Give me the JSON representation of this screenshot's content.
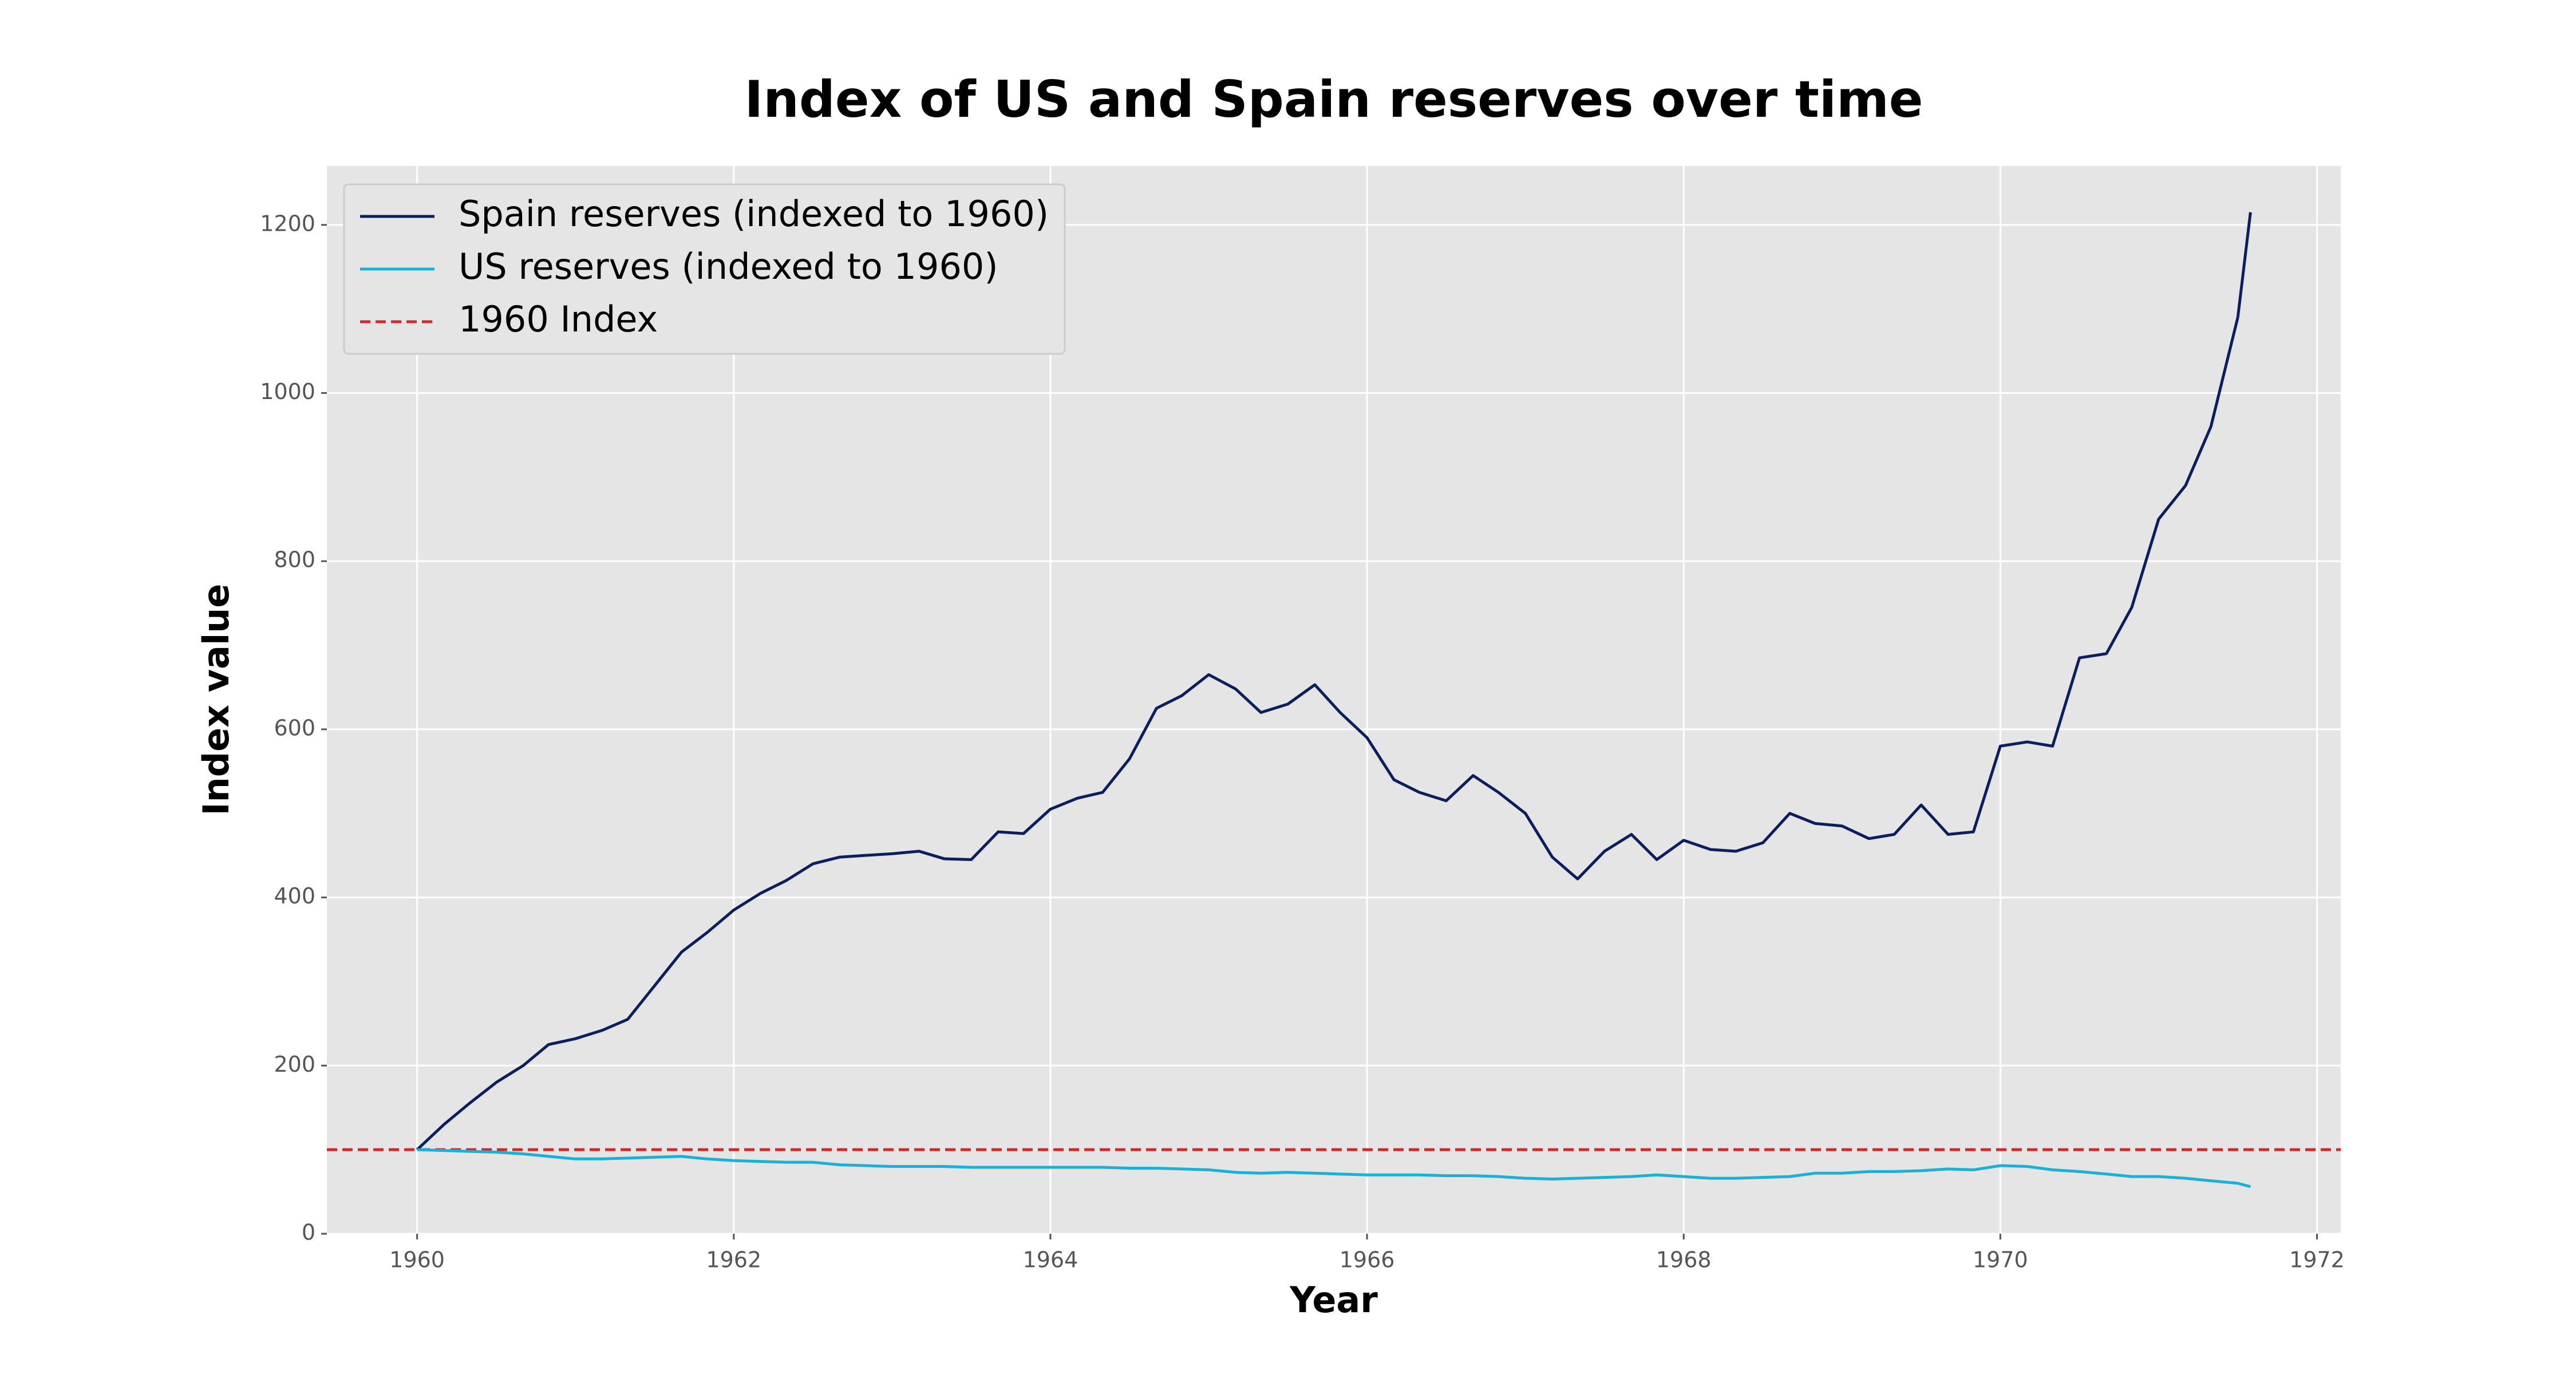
{
  "chart_data": {
    "type": "line",
    "title": "Index of US and Spain reserves over time",
    "xlabel": "Year",
    "ylabel": "Index value",
    "x": [
      1960,
      1960.17,
      1960.33,
      1960.5,
      1960.67,
      1960.83,
      1961,
      1961.17,
      1961.33,
      1961.5,
      1961.67,
      1961.83,
      1962,
      1962.17,
      1962.33,
      1962.5,
      1962.67,
      1962.83,
      1963,
      1963.17,
      1963.33,
      1963.5,
      1963.67,
      1963.83,
      1964,
      1964.17,
      1964.33,
      1964.5,
      1964.67,
      1964.83,
      1965,
      1965.17,
      1965.33,
      1965.5,
      1965.67,
      1965.83,
      1966,
      1966.17,
      1966.33,
      1966.5,
      1966.67,
      1966.83,
      1967,
      1967.17,
      1967.33,
      1967.5,
      1967.67,
      1967.83,
      1968,
      1968.17,
      1968.33,
      1968.5,
      1968.67,
      1968.83,
      1969,
      1969.17,
      1969.33,
      1969.5,
      1969.67,
      1969.83,
      1970,
      1970.17,
      1970.33,
      1970.5,
      1970.67,
      1970.83,
      1971,
      1971.17,
      1971.33,
      1971.5,
      1971.58
    ],
    "series": [
      {
        "name": "Spain reserves (indexed to 1960)",
        "color": "#0b1f5e",
        "values": [
          100,
          130,
          155,
          180,
          200,
          225,
          232,
          242,
          255,
          295,
          335,
          358,
          385,
          405,
          420,
          440,
          448,
          450,
          452,
          455,
          446,
          445,
          478,
          476,
          505,
          518,
          525,
          565,
          625,
          640,
          665,
          648,
          620,
          630,
          653,
          620,
          590,
          540,
          525,
          515,
          545,
          525,
          500,
          448,
          422,
          455,
          475,
          445,
          468,
          457,
          455,
          465,
          500,
          488,
          485,
          470,
          475,
          510,
          475,
          478,
          580,
          585,
          580,
          685,
          690,
          745,
          850,
          890,
          960,
          1090,
          1215
        ]
      },
      {
        "name": "US reserves (indexed to 1960)",
        "color": "#1ab0d8",
        "values": [
          100,
          99,
          98,
          97,
          95,
          92,
          89,
          89,
          90,
          91,
          92,
          89,
          87,
          86,
          85,
          85,
          82,
          81,
          80,
          80,
          80,
          79,
          79,
          79,
          79,
          79,
          79,
          78,
          78,
          77,
          76,
          73,
          72,
          73,
          72,
          71,
          70,
          70,
          70,
          69,
          69,
          68,
          66,
          65,
          66,
          67,
          68,
          70,
          68,
          66,
          66,
          67,
          68,
          72,
          72,
          74,
          74,
          75,
          77,
          76,
          81,
          80,
          76,
          74,
          71,
          68,
          68,
          66,
          63,
          60,
          56
        ]
      }
    ],
    "hlines": [
      {
        "name": "1960 Index",
        "value": 100,
        "color": "#d62728",
        "style": "dashed"
      }
    ],
    "xlim": [
      1959.43,
      1972.15
    ],
    "xticks": [
      1960,
      1962,
      1964,
      1966,
      1968,
      1970,
      1972
    ],
    "ylim": [
      0,
      1270
    ],
    "yticks": [
      0,
      200,
      400,
      600,
      800,
      1000,
      1200
    ],
    "grid": true,
    "legend": "upper left"
  }
}
